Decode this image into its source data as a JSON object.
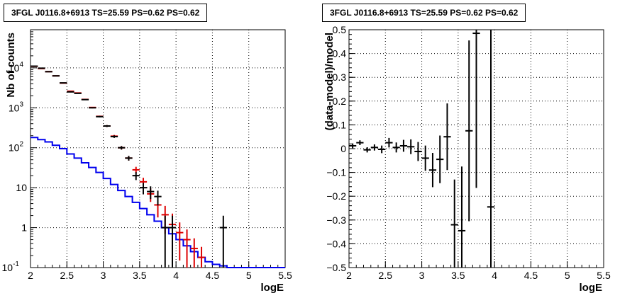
{
  "chart_data": [
    {
      "type": "line",
      "title": "3FGL J0116.8+6913 TS=25.59 PS=0.62 PS=0.62",
      "xlabel": "logE",
      "ylabel": "Nb of counts",
      "xlim": [
        2,
        5.5
      ],
      "ylim": [
        0.1,
        90000
      ],
      "log_y": true,
      "grid": true,
      "x_ticks": [
        "2",
        "2.5",
        "3",
        "3.5",
        "4",
        "4.5",
        "5",
        "5.5"
      ],
      "y_ticks": [
        "10^-1",
        "1",
        "10",
        "10^2",
        "10^3",
        "10^4"
      ],
      "series": [
        {
          "color": "#000000",
          "style": "errorbar",
          "points": [
            {
              "x": 2.05,
              "y": 11000,
              "err": 105
            },
            {
              "x": 2.15,
              "y": 9800,
              "err": 99
            },
            {
              "x": 2.25,
              "y": 8000,
              "err": 89
            },
            {
              "x": 2.35,
              "y": 6300,
              "err": 79
            },
            {
              "x": 2.45,
              "y": 4200,
              "err": 65
            },
            {
              "x": 2.55,
              "y": 2500,
              "err": 50
            },
            {
              "x": 2.65,
              "y": 2300,
              "err": 48
            },
            {
              "x": 2.75,
              "y": 1600,
              "err": 40
            },
            {
              "x": 2.85,
              "y": 1000,
              "err": 32
            },
            {
              "x": 2.95,
              "y": 600,
              "err": 24
            },
            {
              "x": 3.05,
              "y": 350,
              "err": 19
            },
            {
              "x": 3.15,
              "y": 190,
              "err": 14
            },
            {
              "x": 3.25,
              "y": 100,
              "err": 10
            },
            {
              "x": 3.35,
              "y": 55,
              "err": 7.4
            },
            {
              "x": 3.45,
              "y": 20,
              "err": 4.5
            },
            {
              "x": 3.55,
              "y": 10,
              "err": 3.2
            },
            {
              "x": 3.65,
              "y": 8,
              "err": 2.8
            },
            {
              "x": 3.75,
              "y": 6,
              "err": 2.4
            },
            {
              "x": 3.85,
              "y": 1,
              "err": 0.99
            },
            {
              "x": 3.95,
              "y": 1,
              "err": 0.99
            },
            {
              "x": 4.65,
              "y": 1,
              "err": 0.99
            }
          ]
        },
        {
          "color": "#dd0000",
          "style": "errorbar",
          "points": [
            {
              "x": 2.05,
              "y": 10900,
              "err": 104
            },
            {
              "x": 2.15,
              "y": 9600,
              "err": 98
            },
            {
              "x": 2.25,
              "y": 8050,
              "err": 90
            },
            {
              "x": 2.35,
              "y": 6300,
              "err": 79
            },
            {
              "x": 2.45,
              "y": 4150,
              "err": 64
            },
            {
              "x": 2.55,
              "y": 2600,
              "err": 51
            },
            {
              "x": 2.65,
              "y": 2350,
              "err": 48
            },
            {
              "x": 2.75,
              "y": 1620,
              "err": 40
            },
            {
              "x": 2.85,
              "y": 1020,
              "err": 32
            },
            {
              "x": 2.95,
              "y": 610,
              "err": 25
            },
            {
              "x": 3.05,
              "y": 350,
              "err": 19
            },
            {
              "x": 3.15,
              "y": 195,
              "err": 14
            },
            {
              "x": 3.25,
              "y": 100,
              "err": 10
            },
            {
              "x": 3.35,
              "y": 55,
              "err": 7.4
            },
            {
              "x": 3.45,
              "y": 28,
              "err": 5.3
            },
            {
              "x": 3.55,
              "y": 14,
              "err": 3.7
            },
            {
              "x": 3.65,
              "y": 7,
              "err": 2.6
            },
            {
              "x": 3.75,
              "y": 3.7,
              "err": 1.9
            },
            {
              "x": 3.85,
              "y": 2.1,
              "err": 1.4
            },
            {
              "x": 3.95,
              "y": 1.2,
              "err": 1.05
            },
            {
              "x": 4.05,
              "y": 0.75,
              "err": 0.6
            },
            {
              "x": 4.15,
              "y": 0.5,
              "err": 0.4
            },
            {
              "x": 4.25,
              "y": 0.3,
              "err": 0.24
            },
            {
              "x": 4.35,
              "y": 0.18,
              "err": 0.15
            }
          ]
        },
        {
          "color": "#0000ee",
          "style": "step",
          "bins": [
            {
              "x0": 2.0,
              "x1": 2.1,
              "y": 180
            },
            {
              "x0": 2.1,
              "x1": 2.2,
              "y": 160
            },
            {
              "x0": 2.2,
              "x1": 2.3,
              "y": 140
            },
            {
              "x0": 2.3,
              "x1": 2.4,
              "y": 115
            },
            {
              "x0": 2.4,
              "x1": 2.5,
              "y": 95
            },
            {
              "x0": 2.5,
              "x1": 2.6,
              "y": 70
            },
            {
              "x0": 2.6,
              "x1": 2.7,
              "y": 55
            },
            {
              "x0": 2.7,
              "x1": 2.8,
              "y": 42
            },
            {
              "x0": 2.8,
              "x1": 2.9,
              "y": 32
            },
            {
              "x0": 2.9,
              "x1": 3.0,
              "y": 24
            },
            {
              "x0": 3.0,
              "x1": 3.1,
              "y": 17
            },
            {
              "x0": 3.1,
              "x1": 3.2,
              "y": 12
            },
            {
              "x0": 3.2,
              "x1": 3.3,
              "y": 8.5
            },
            {
              "x0": 3.3,
              "x1": 3.4,
              "y": 6
            },
            {
              "x0": 3.4,
              "x1": 3.5,
              "y": 4.3
            },
            {
              "x0": 3.5,
              "x1": 3.6,
              "y": 3
            },
            {
              "x0": 3.6,
              "x1": 3.7,
              "y": 2.1
            },
            {
              "x0": 3.7,
              "x1": 3.8,
              "y": 1.45
            },
            {
              "x0": 3.8,
              "x1": 3.9,
              "y": 1.0
            },
            {
              "x0": 3.9,
              "x1": 4.0,
              "y": 0.7
            },
            {
              "x0": 4.0,
              "x1": 4.1,
              "y": 0.5
            },
            {
              "x0": 4.1,
              "x1": 4.2,
              "y": 0.35
            },
            {
              "x0": 4.2,
              "x1": 4.3,
              "y": 0.25
            },
            {
              "x0": 4.3,
              "x1": 4.4,
              "y": 0.18
            },
            {
              "x0": 4.4,
              "x1": 4.5,
              "y": 0.14
            },
            {
              "x0": 4.5,
              "x1": 4.6,
              "y": 0.12
            },
            {
              "x0": 4.6,
              "x1": 4.7,
              "y": 0.11
            },
            {
              "x0": 4.7,
              "x1": 5.5,
              "y": 0.1
            }
          ]
        }
      ]
    },
    {
      "type": "scatter",
      "title": "3FGL J0116.8+6913 TS=25.59 PS=0.62 PS=0.62",
      "xlabel": "logE",
      "ylabel": "(data-model)/model",
      "xlim": [
        2,
        5.5
      ],
      "ylim": [
        -0.5,
        0.5
      ],
      "grid": true,
      "x_ticks": [
        "2",
        "2.5",
        "3",
        "3.5",
        "4",
        "4.5",
        "5",
        "5.5"
      ],
      "y_ticks": [
        "-0.5",
        "-0.4",
        "-0.3",
        "-0.2",
        "-0.1",
        "0",
        "0.1",
        "0.2",
        "0.3",
        "0.4",
        "0.5"
      ],
      "series": [
        {
          "color": "#000000",
          "style": "errorbar",
          "points": [
            {
              "x": 2.05,
              "y": 0.012,
              "err": 0.01
            },
            {
              "x": 2.15,
              "y": 0.025,
              "err": 0.01
            },
            {
              "x": 2.25,
              "y": -0.005,
              "err": 0.011
            },
            {
              "x": 2.35,
              "y": 0.005,
              "err": 0.013
            },
            {
              "x": 2.45,
              "y": -0.003,
              "err": 0.016
            },
            {
              "x": 2.55,
              "y": 0.025,
              "err": 0.02
            },
            {
              "x": 2.65,
              "y": 0.005,
              "err": 0.021
            },
            {
              "x": 2.75,
              "y": 0.012,
              "err": 0.025
            },
            {
              "x": 2.85,
              "y": 0.008,
              "err": 0.031
            },
            {
              "x": 2.95,
              "y": -0.012,
              "err": 0.04
            },
            {
              "x": 3.05,
              "y": -0.04,
              "err": 0.053
            },
            {
              "x": 3.15,
              "y": -0.09,
              "err": 0.072
            },
            {
              "x": 3.25,
              "y": -0.045,
              "err": 0.1
            },
            {
              "x": 3.35,
              "y": 0.05,
              "err": 0.14
            },
            {
              "x": 3.45,
              "y": -0.32,
              "err": 0.19
            },
            {
              "x": 3.55,
              "y": -0.345,
              "err": 0.27
            },
            {
              "x": 3.65,
              "y": 0.075,
              "err": 0.38
            },
            {
              "x": 3.75,
              "y": 0.485,
              "err": 0.65
            },
            {
              "x": 3.95,
              "y": -0.245,
              "err": 0.9
            }
          ]
        }
      ]
    }
  ]
}
